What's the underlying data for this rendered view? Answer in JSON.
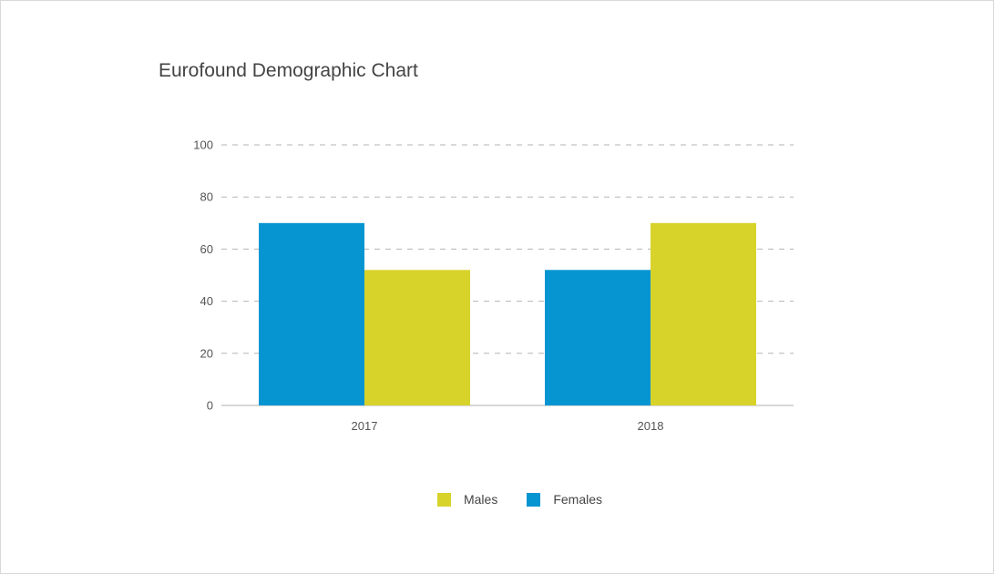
{
  "chart_data": {
    "type": "bar",
    "title": "Eurofound Demographic Chart",
    "xlabel": "",
    "ylabel": "",
    "categories": [
      "2017",
      "2018"
    ],
    "series": [
      {
        "name": "Females",
        "values": [
          70,
          52
        ],
        "color": "#0795d2"
      },
      {
        "name": "Males",
        "values": [
          52,
          70
        ],
        "color": "#d8d32b"
      }
    ],
    "ylim": [
      0,
      100
    ],
    "yticks": [
      0,
      20,
      40,
      60,
      80,
      100
    ],
    "grid": true,
    "legend_position": "bottom",
    "legend": [
      {
        "label": "Males",
        "color": "#d8d32b"
      },
      {
        "label": "Females",
        "color": "#0795d2"
      }
    ]
  }
}
